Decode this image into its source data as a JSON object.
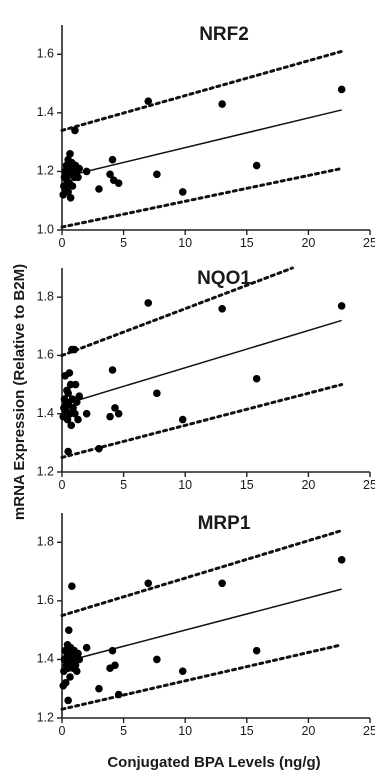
{
  "figure": {
    "ylabel": "mRNA Expression (Relative to B2M)",
    "xlabel": "Conjugated BPA Levels (ng/g)"
  },
  "chart_data": [
    {
      "type": "scatter",
      "title": "NRF2",
      "xlim": [
        0,
        25
      ],
      "ylim": [
        1.0,
        1.7
      ],
      "xticks": [
        0,
        5,
        10,
        15,
        20,
        25
      ],
      "yticks": [
        1.0,
        1.2,
        1.4,
        1.6
      ],
      "ytick_labels": [
        "1.0",
        "1.2",
        "1.4",
        "1.6"
      ],
      "points": [
        [
          0.1,
          1.12
        ],
        [
          0.15,
          1.15
        ],
        [
          0.2,
          1.18
        ],
        [
          0.25,
          1.2
        ],
        [
          0.3,
          1.14
        ],
        [
          0.35,
          1.22
        ],
        [
          0.4,
          1.17
        ],
        [
          0.45,
          1.19
        ],
        [
          0.5,
          1.13
        ],
        [
          0.5,
          1.24
        ],
        [
          0.55,
          1.21
        ],
        [
          0.6,
          1.16
        ],
        [
          0.65,
          1.26
        ],
        [
          0.7,
          1.11
        ],
        [
          0.75,
          1.19
        ],
        [
          0.8,
          1.23
        ],
        [
          0.85,
          1.15
        ],
        [
          0.9,
          1.2
        ],
        [
          1.0,
          1.18
        ],
        [
          1.05,
          1.34
        ],
        [
          1.1,
          1.22
        ],
        [
          1.2,
          1.2
        ],
        [
          1.3,
          1.18
        ],
        [
          1.4,
          1.21
        ],
        [
          2.0,
          1.2
        ],
        [
          3.0,
          1.14
        ],
        [
          3.9,
          1.19
        ],
        [
          4.1,
          1.24
        ],
        [
          4.2,
          1.17
        ],
        [
          4.6,
          1.16
        ],
        [
          7.0,
          1.44
        ],
        [
          7.7,
          1.19
        ],
        [
          9.8,
          1.13
        ],
        [
          13.0,
          1.43
        ],
        [
          15.8,
          1.22
        ],
        [
          22.7,
          1.48
        ]
      ],
      "fit": {
        "x": [
          0,
          22.7
        ],
        "y": [
          1.18,
          1.41
        ]
      },
      "ci_lower": {
        "x": [
          0,
          22.7
        ],
        "y": [
          1.01,
          1.21
        ]
      },
      "ci_upper": {
        "x": [
          0,
          22.7
        ],
        "y": [
          1.34,
          1.61
        ]
      }
    },
    {
      "type": "scatter",
      "title": "NQO1",
      "xlim": [
        0,
        25
      ],
      "ylim": [
        1.2,
        1.9
      ],
      "xticks": [
        0,
        5,
        10,
        15,
        20,
        25
      ],
      "yticks": [
        1.2,
        1.4,
        1.6,
        1.8
      ],
      "ytick_labels": [
        "1.2",
        "1.4",
        "1.6",
        "1.8"
      ],
      "points": [
        [
          0.1,
          1.39
        ],
        [
          0.15,
          1.42
        ],
        [
          0.2,
          1.45
        ],
        [
          0.25,
          1.53
        ],
        [
          0.3,
          1.41
        ],
        [
          0.35,
          1.44
        ],
        [
          0.4,
          1.48
        ],
        [
          0.45,
          1.38
        ],
        [
          0.5,
          1.27
        ],
        [
          0.5,
          1.47
        ],
        [
          0.55,
          1.43
        ],
        [
          0.6,
          1.54
        ],
        [
          0.65,
          1.4
        ],
        [
          0.7,
          1.5
        ],
        [
          0.75,
          1.36
        ],
        [
          0.8,
          1.62
        ],
        [
          0.85,
          1.45
        ],
        [
          0.9,
          1.42
        ],
        [
          1.0,
          1.62
        ],
        [
          1.05,
          1.4
        ],
        [
          1.1,
          1.5
        ],
        [
          1.2,
          1.44
        ],
        [
          1.3,
          1.38
        ],
        [
          1.4,
          1.46
        ],
        [
          2.0,
          1.4
        ],
        [
          3.0,
          1.28
        ],
        [
          3.9,
          1.39
        ],
        [
          4.1,
          1.55
        ],
        [
          4.3,
          1.42
        ],
        [
          4.6,
          1.4
        ],
        [
          7.0,
          1.78
        ],
        [
          7.7,
          1.47
        ],
        [
          9.8,
          1.38
        ],
        [
          13.0,
          1.76
        ],
        [
          15.8,
          1.52
        ],
        [
          22.7,
          1.77
        ]
      ],
      "fit": {
        "x": [
          0,
          22.7
        ],
        "y": [
          1.43,
          1.72
        ]
      },
      "ci_lower": {
        "x": [
          0,
          22.7
        ],
        "y": [
          1.25,
          1.5
        ]
      },
      "ci_upper": {
        "x": [
          0,
          18.7
        ],
        "y": [
          1.6,
          1.9
        ]
      }
    },
    {
      "type": "scatter",
      "title": "MRP1",
      "xlim": [
        0,
        25
      ],
      "ylim": [
        1.2,
        1.9
      ],
      "xticks": [
        0,
        5,
        10,
        15,
        20,
        25
      ],
      "yticks": [
        1.2,
        1.4,
        1.6,
        1.8
      ],
      "ytick_labels": [
        "1.2",
        "1.4",
        "1.6",
        "1.8"
      ],
      "points": [
        [
          0.1,
          1.31
        ],
        [
          0.15,
          1.36
        ],
        [
          0.2,
          1.4
        ],
        [
          0.25,
          1.43
        ],
        [
          0.3,
          1.32
        ],
        [
          0.35,
          1.38
        ],
        [
          0.4,
          1.41
        ],
        [
          0.45,
          1.45
        ],
        [
          0.5,
          1.26
        ],
        [
          0.5,
          1.37
        ],
        [
          0.55,
          1.5
        ],
        [
          0.6,
          1.42
        ],
        [
          0.65,
          1.34
        ],
        [
          0.7,
          1.44
        ],
        [
          0.75,
          1.39
        ],
        [
          0.8,
          1.65
        ],
        [
          0.85,
          1.41
        ],
        [
          0.9,
          1.37
        ],
        [
          1.0,
          1.43
        ],
        [
          1.05,
          1.4
        ],
        [
          1.1,
          1.38
        ],
        [
          1.2,
          1.36
        ],
        [
          1.3,
          1.42
        ],
        [
          1.4,
          1.4
        ],
        [
          2.0,
          1.44
        ],
        [
          3.0,
          1.3
        ],
        [
          3.9,
          1.37
        ],
        [
          4.1,
          1.43
        ],
        [
          4.3,
          1.38
        ],
        [
          4.6,
          1.28
        ],
        [
          7.0,
          1.66
        ],
        [
          7.7,
          1.4
        ],
        [
          9.8,
          1.36
        ],
        [
          13.0,
          1.66
        ],
        [
          15.8,
          1.43
        ],
        [
          22.7,
          1.74
        ]
      ],
      "fit": {
        "x": [
          0,
          22.7
        ],
        "y": [
          1.39,
          1.64
        ]
      },
      "ci_lower": {
        "x": [
          0,
          22.7
        ],
        "y": [
          1.23,
          1.45
        ]
      },
      "ci_upper": {
        "x": [
          0,
          22.7
        ],
        "y": [
          1.55,
          1.84
        ]
      }
    }
  ]
}
